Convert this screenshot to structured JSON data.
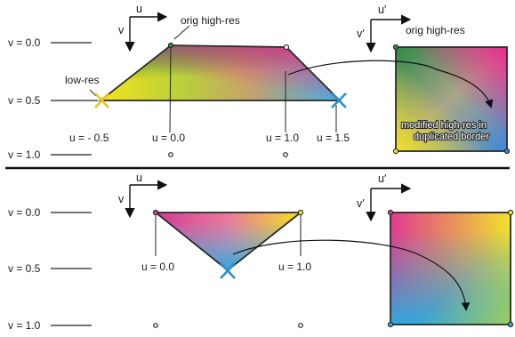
{
  "top": {
    "v_labels": [
      "v = 0.0",
      "v = 0.5",
      "v = 1.0"
    ],
    "axes": {
      "u": "u",
      "v": "v"
    },
    "axes_prime": {
      "u": "u′",
      "v": "v′"
    },
    "low_res_label": "low-res",
    "orig_label": "orig high-res",
    "orig_label_right": "orig high-res",
    "u_labels": [
      "u = - 0.5",
      "u = 0.0",
      "u = 1.0",
      "u = 1.5"
    ],
    "modified_lines": [
      "modified high-res in",
      "duplicated border"
    ]
  },
  "bottom": {
    "v_labels": [
      "v = 0.0",
      "v = 0.5",
      "v = 1.0"
    ],
    "axes": {
      "u": "u",
      "v": "v"
    },
    "axes_prime": {
      "u": "u′",
      "v": "v′"
    },
    "u_labels": [
      "u = 0.0",
      "u = 1.0"
    ]
  },
  "colors": {
    "magenta": "#e8388e",
    "yellow": "#f5e11a",
    "cyan": "#2fa8dd",
    "green": "#2e8b4a",
    "blue": "#3f7fd0",
    "line": "#222222",
    "cross_yellow": "#e8c51a",
    "cross_blue": "#2f8fd0"
  }
}
